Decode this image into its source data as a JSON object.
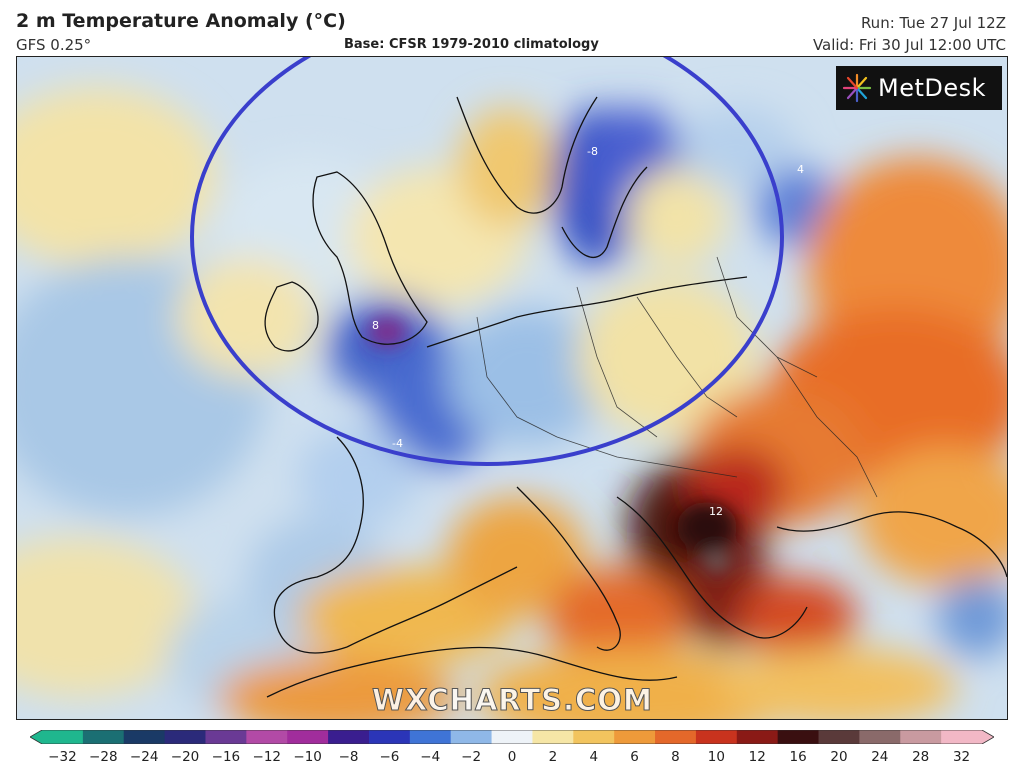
{
  "header": {
    "title": "2 m Temperature Anomaly (°C)",
    "model": "GFS 0.25°",
    "base": "Base: CFSR 1979-2010 climatology",
    "run": "Run: Tue 27 Jul 12Z",
    "valid": "Valid: Fri 30 Jul 12:00 UTC"
  },
  "logo": {
    "text": "MetDesk",
    "icon": "metdesk-burst-icon"
  },
  "watermark": "WXCHARTS.COM",
  "annotation": {
    "shape": "ellipse",
    "color": "#3a3fcc",
    "region": "north-west-europe"
  },
  "map_labels": [
    "8",
    "12",
    "4",
    "-4",
    "-8"
  ],
  "colorbar": {
    "ticks": [
      "−32",
      "−28",
      "−24",
      "−20",
      "−16",
      "−12",
      "−10",
      "−8",
      "−6",
      "−4",
      "−2",
      "0",
      "2",
      "4",
      "6",
      "8",
      "10",
      "12",
      "16",
      "20",
      "24",
      "28",
      "32"
    ],
    "colors": [
      "#1fb78e",
      "#1b6f73",
      "#1a3a66",
      "#2b2a7a",
      "#6a3a95",
      "#b24aa6",
      "#a12d9c",
      "#3a1e8f",
      "#2b35b8",
      "#3f74d6",
      "#8fb8e8",
      "#eef3f8",
      "#f6e6a6",
      "#f2c45e",
      "#ee9a3a",
      "#e4682a",
      "#c9331e",
      "#8a1a16",
      "#3a0f10",
      "#5a3a3a",
      "#8a6a6a",
      "#c99aa0",
      "#f2b8c6"
    ]
  }
}
